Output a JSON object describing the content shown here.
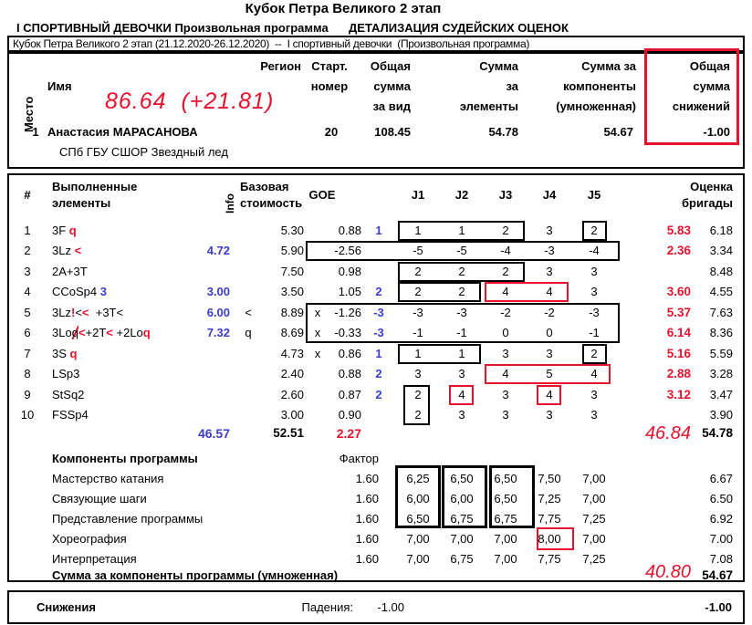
{
  "header": {
    "title": "Кубок Петра Великого 2 этап",
    "subtitle_left": "I СПОРТИВНЫЙ ДЕВОЧКИ Произвольная программа",
    "subtitle_right": "ДЕТАЛИЗАЦИЯ СУДЕЙСКИХ ОЦЕНОК",
    "info_bar": "Кубок Петра Великого 2 этап (21.12.2020-26.12.2020)  --  I спортивный девочки  (Произвольная программа)"
  },
  "colors": {
    "accent_red": "#e8112d",
    "correction_blue": "#3c3ccd"
  },
  "result_header": {
    "place": "Место",
    "name": "Имя",
    "region": "Регион",
    "start": [
      "Старт.",
      "номер"
    ],
    "total": [
      "Общая",
      "сумма",
      "за вид"
    ],
    "elements": [
      "Сумма",
      "за",
      "элементы"
    ],
    "components": [
      "Сумма за",
      "компоненты",
      "(умноженная)"
    ],
    "deductions": [
      "Общая",
      "сумма",
      "снижений"
    ]
  },
  "written": {
    "total": "86.64",
    "delta": "(+21.81)",
    "tes": "46.84",
    "pcs": "40.80"
  },
  "skater": {
    "place": "1",
    "name": "Анастасия МАРАСАНОВА",
    "start_number": "20",
    "total": "108.45",
    "tes": "54.78",
    "pcs": "54.67",
    "deductions": "-1.00",
    "club": "СПб ГБУ СШОР Звездный лед"
  },
  "elements": {
    "header": {
      "num": "#",
      "name": [
        "Выполненные",
        "элементы"
      ],
      "info": "Info",
      "base": [
        "Базовая",
        "стоимость"
      ],
      "goe": "GOE",
      "judges": [
        "J1",
        "J2",
        "J3",
        "J4",
        "J5"
      ],
      "panel": [
        "Оценка",
        "бригады"
      ]
    },
    "rows": [
      {
        "num": "1",
        "name": [
          {
            "t": "3F ",
            "c": "k"
          },
          {
            "t": "q",
            "c": "r"
          }
        ],
        "blue": "",
        "info": "",
        "base": "5.30",
        "x": "",
        "goe": "0.88",
        "goe_blue": "1",
        "j": [
          "1",
          "1",
          "2",
          "3",
          "2"
        ],
        "red": "5.83",
        "panel": "6.18"
      },
      {
        "num": "2",
        "name": [
          {
            "t": "3Lz ",
            "c": "k"
          },
          {
            "t": "<",
            "c": "r"
          }
        ],
        "blue": "4.72",
        "info": "",
        "base": "5.90",
        "x": "",
        "goe": "-2.56",
        "goe_blue": "",
        "j": [
          "-5",
          "-5",
          "-4",
          "-3",
          "-4"
        ],
        "red": "2.36",
        "panel": "3.34"
      },
      {
        "num": "3",
        "name": [
          {
            "t": "2A+3T",
            "c": "k"
          }
        ],
        "blue": "",
        "info": "",
        "base": "7.50",
        "x": "",
        "goe": "0.98",
        "goe_blue": "",
        "j": [
          "2",
          "2",
          "2",
          "3",
          "3"
        ],
        "red": "",
        "panel": "8.48"
      },
      {
        "num": "4",
        "name": [
          {
            "t": "CCoSp4 ",
            "c": "k"
          },
          {
            "t": "3",
            "c": "b"
          }
        ],
        "blue": "3.00",
        "info": "",
        "base": "3.50",
        "x": "",
        "goe": "1.05",
        "goe_blue": "2",
        "j": [
          "2",
          "2",
          "4",
          "4",
          "3"
        ],
        "red": "3.60",
        "panel": "4.55"
      },
      {
        "num": "5",
        "name": [
          {
            "t": "3Lz",
            "c": "k"
          },
          {
            "t": "!",
            "c": "r"
          },
          {
            "t": "<",
            "c": "k"
          },
          {
            "t": "<",
            "c": "r"
          },
          {
            "t": "  +3T<",
            "c": "k"
          }
        ],
        "blue": "6.00",
        "info": "<",
        "base": "8.89",
        "x": "x",
        "goe": "-1.26",
        "goe_blue": "-3",
        "j": [
          "-3",
          "-3",
          "-2",
          "-2",
          "-3"
        ],
        "red": "5.37",
        "panel": "7.63"
      },
      {
        "num": "6",
        "name": [
          {
            "t": "3Lo",
            "c": "k"
          },
          {
            "t": "q",
            "c": "ks"
          },
          {
            "t": "<",
            "c": "r"
          },
          {
            "t": "+2T",
            "c": "k"
          },
          {
            "t": "<",
            "c": "r"
          },
          {
            "t": " +2Lo",
            "c": "k"
          },
          {
            "t": "q",
            "c": "r"
          }
        ],
        "blue": "7.32",
        "info": "q",
        "base": "8.69",
        "x": "x",
        "goe": "-0.33",
        "goe_blue": "-3",
        "j": [
          "-1",
          "-1",
          "0",
          "0",
          "-1"
        ],
        "red": "6.14",
        "panel": "8.36"
      },
      {
        "num": "7",
        "name": [
          {
            "t": "3S ",
            "c": "k"
          },
          {
            "t": "q",
            "c": "r"
          }
        ],
        "blue": "",
        "info": "",
        "base": "4.73",
        "x": "x",
        "goe": "0.86",
        "goe_blue": "1",
        "j": [
          "1",
          "1",
          "3",
          "3",
          "2"
        ],
        "red": "5.16",
        "panel": "5.59"
      },
      {
        "num": "8",
        "name": [
          {
            "t": "LSp3",
            "c": "k"
          }
        ],
        "blue": "",
        "info": "",
        "base": "2.40",
        "x": "",
        "goe": "0.88",
        "goe_blue": "2",
        "j": [
          "3",
          "3",
          "4",
          "5",
          "4"
        ],
        "red": "2.88",
        "panel": "3.28"
      },
      {
        "num": "9",
        "name": [
          {
            "t": "StSq2",
            "c": "k"
          }
        ],
        "blue": "",
        "info": "",
        "base": "2.60",
        "x": "",
        "goe": "0.87",
        "goe_blue": "2",
        "j": [
          "2",
          "4",
          "3",
          "4",
          "3"
        ],
        "red": "3.12",
        "panel": "3.47"
      },
      {
        "num": "10",
        "name": [
          {
            "t": "FSSp4",
            "c": "k"
          }
        ],
        "blue": "",
        "info": "",
        "base": "3.00",
        "x": "",
        "goe": "0.90",
        "goe_blue": "",
        "j": [
          "2",
          "3",
          "3",
          "3",
          "3"
        ],
        "red": "",
        "panel": "3.90"
      }
    ],
    "totals": {
      "blue": "46.57",
      "base": "52.51",
      "goe": "2.27",
      "panel": "54.78"
    }
  },
  "components": {
    "title": "Компоненты программы",
    "factor_label": "Фактор",
    "rows": [
      {
        "name": "Мастерство катания",
        "factor": "1.60",
        "j": [
          "6,25",
          "6,50",
          "6,50",
          "7,50",
          "7,00"
        ],
        "score": "6.67"
      },
      {
        "name": "Связующие шаги",
        "factor": "1.60",
        "j": [
          "6,00",
          "6,00",
          "6,50",
          "7,25",
          "7,00"
        ],
        "score": "6.50"
      },
      {
        "name": "Представление программы",
        "factor": "1.60",
        "j": [
          "6,50",
          "6,75",
          "6,75",
          "7,75",
          "7,25"
        ],
        "score": "6.92"
      },
      {
        "name": "Хореография",
        "factor": "1.60",
        "j": [
          "7,00",
          "7,00",
          "7,00",
          "8,00",
          "7,00"
        ],
        "score": "7.00"
      },
      {
        "name": "Интерпретация",
        "factor": "1.60",
        "j": [
          "7,00",
          "6,75",
          "7,00",
          "7,75",
          "7,25"
        ],
        "score": "7.08"
      }
    ],
    "sum_label": "Сумма за компоненты программы (умноженная)",
    "sum_score": "54.67"
  },
  "deductions": {
    "label": "Снижения",
    "falls_label": "Падения:",
    "falls_value": "-1.00",
    "total": "-1.00"
  }
}
